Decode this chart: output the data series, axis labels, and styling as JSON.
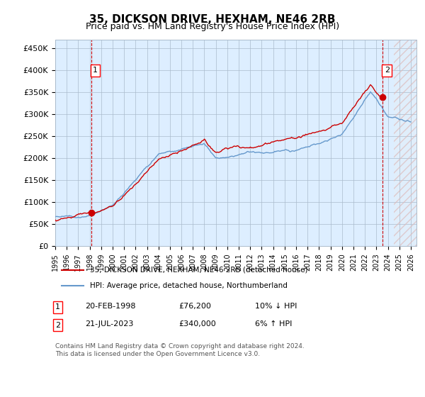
{
  "title": "35, DICKSON DRIVE, HEXHAM, NE46 2RB",
  "subtitle": "Price paid vs. HM Land Registry's House Price Index (HPI)",
  "ylabel_ticks": [
    "£0",
    "£50K",
    "£100K",
    "£150K",
    "£200K",
    "£250K",
    "£300K",
    "£350K",
    "£400K",
    "£450K"
  ],
  "ytick_values": [
    0,
    50000,
    100000,
    150000,
    200000,
    250000,
    300000,
    350000,
    400000,
    450000
  ],
  "ylim": [
    0,
    470000
  ],
  "xlim_start": 1995.0,
  "xlim_end": 2026.5,
  "hpi_line_color": "#6699cc",
  "price_line_color": "#cc0000",
  "marker1_date": 1998.13,
  "marker1_price": 76200,
  "marker2_date": 2023.55,
  "marker2_price": 340000,
  "background_color": "#ddeeff",
  "plot_bg_color": "#ddeeff",
  "grid_color": "#aabbcc",
  "legend_label_red": "35, DICKSON DRIVE, HEXHAM, NE46 2RB (detached house)",
  "legend_label_blue": "HPI: Average price, detached house, Northumberland",
  "annotation1_label": "1",
  "annotation2_label": "2",
  "footnote_row1": "1   20-FEB-1998          £76,200        10% ↓ HPI",
  "footnote_row2": "2   21-JUL-2023          £340,000        6% ↑ HPI",
  "copyright_text": "Contains HM Land Registry data © Crown copyright and database right 2024.\nThis data is licensed under the Open Government Licence v3.0.",
  "xtick_years": [
    1995,
    1996,
    1997,
    1998,
    1999,
    2000,
    2001,
    2002,
    2003,
    2004,
    2005,
    2006,
    2007,
    2008,
    2009,
    2010,
    2011,
    2012,
    2013,
    2014,
    2015,
    2016,
    2017,
    2018,
    2019,
    2020,
    2021,
    2022,
    2023,
    2024,
    2025,
    2026
  ],
  "hatch_color": "#cc9999",
  "future_hatch_start": 2024.55
}
